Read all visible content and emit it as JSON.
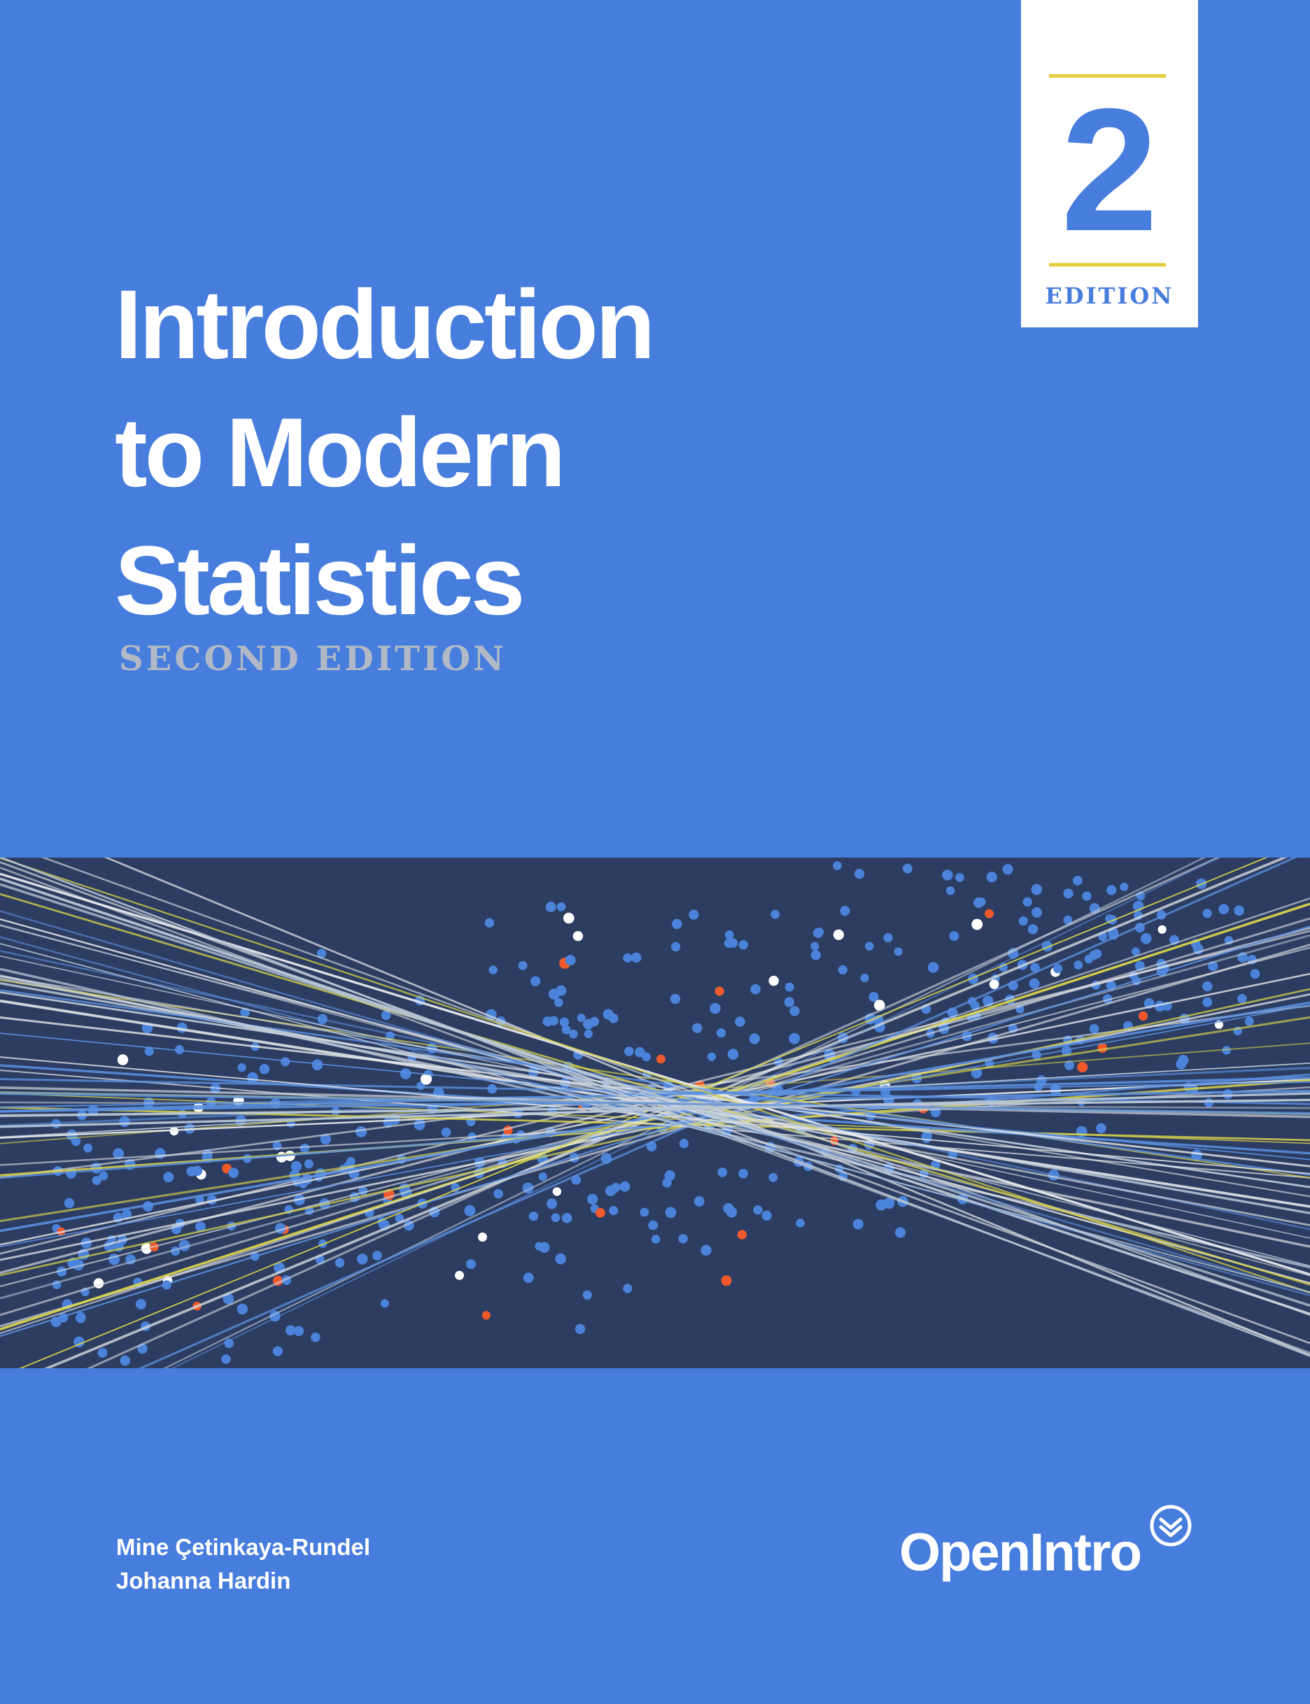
{
  "cover": {
    "title_lines": [
      "Introduction",
      "to Modern",
      "Statistics"
    ],
    "subtitle": "SECOND EDITION",
    "edition_badge": {
      "number": "2",
      "label": "EDITION"
    },
    "authors": [
      "Mine Çetinkaya-Rundel",
      "Johanna Hardin"
    ],
    "publisher": "OpenIntro",
    "colors": {
      "background": "#477ddc",
      "art_background": "#2c3d61",
      "accent_yellow": "#e5cd3d",
      "accent_orange": "#f0592b",
      "subtitle_gray": "#b2b9c6"
    },
    "icons": {
      "publisher_logo": "double-chevron-down-circle-icon"
    }
  }
}
